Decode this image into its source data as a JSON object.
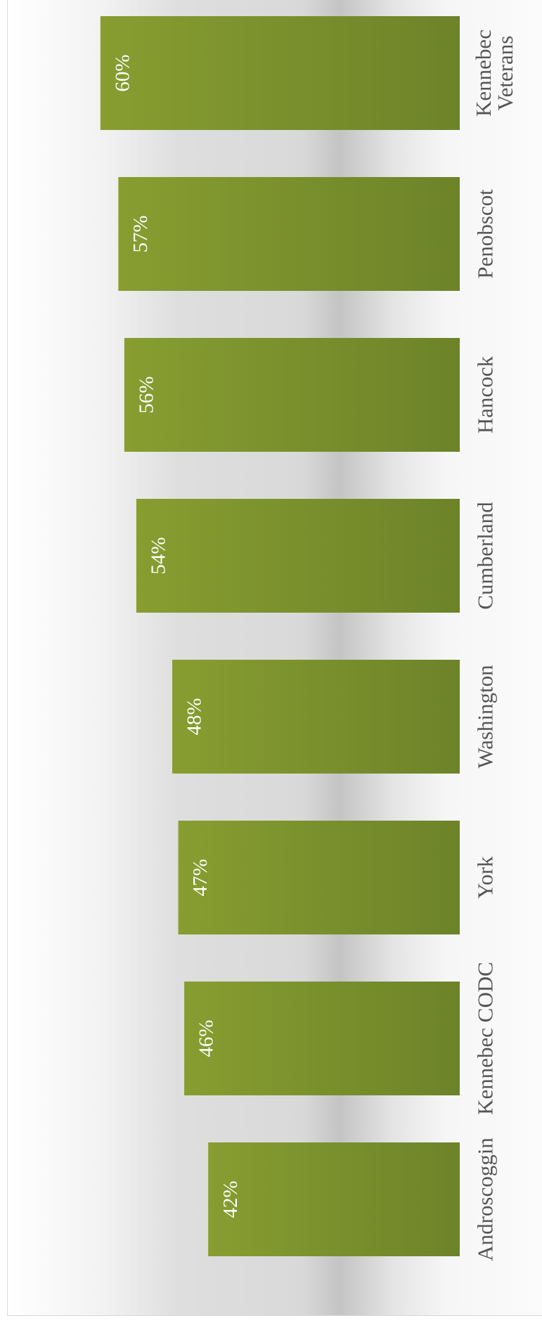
{
  "chart_data": {
    "type": "bar",
    "orientation": "horizontal",
    "categories": [
      "Androscoggin",
      "Kennebec CODC",
      "York",
      "Washington",
      "Cumberland",
      "Hancock",
      "Penobscot",
      "Kennebec\nVeterans"
    ],
    "values": [
      42,
      46,
      47,
      48,
      54,
      56,
      57,
      60
    ],
    "value_labels": [
      "42%",
      "46%",
      "47%",
      "48%",
      "54%",
      "56%",
      "57%",
      "60%"
    ],
    "color": "#7b922d"
  }
}
